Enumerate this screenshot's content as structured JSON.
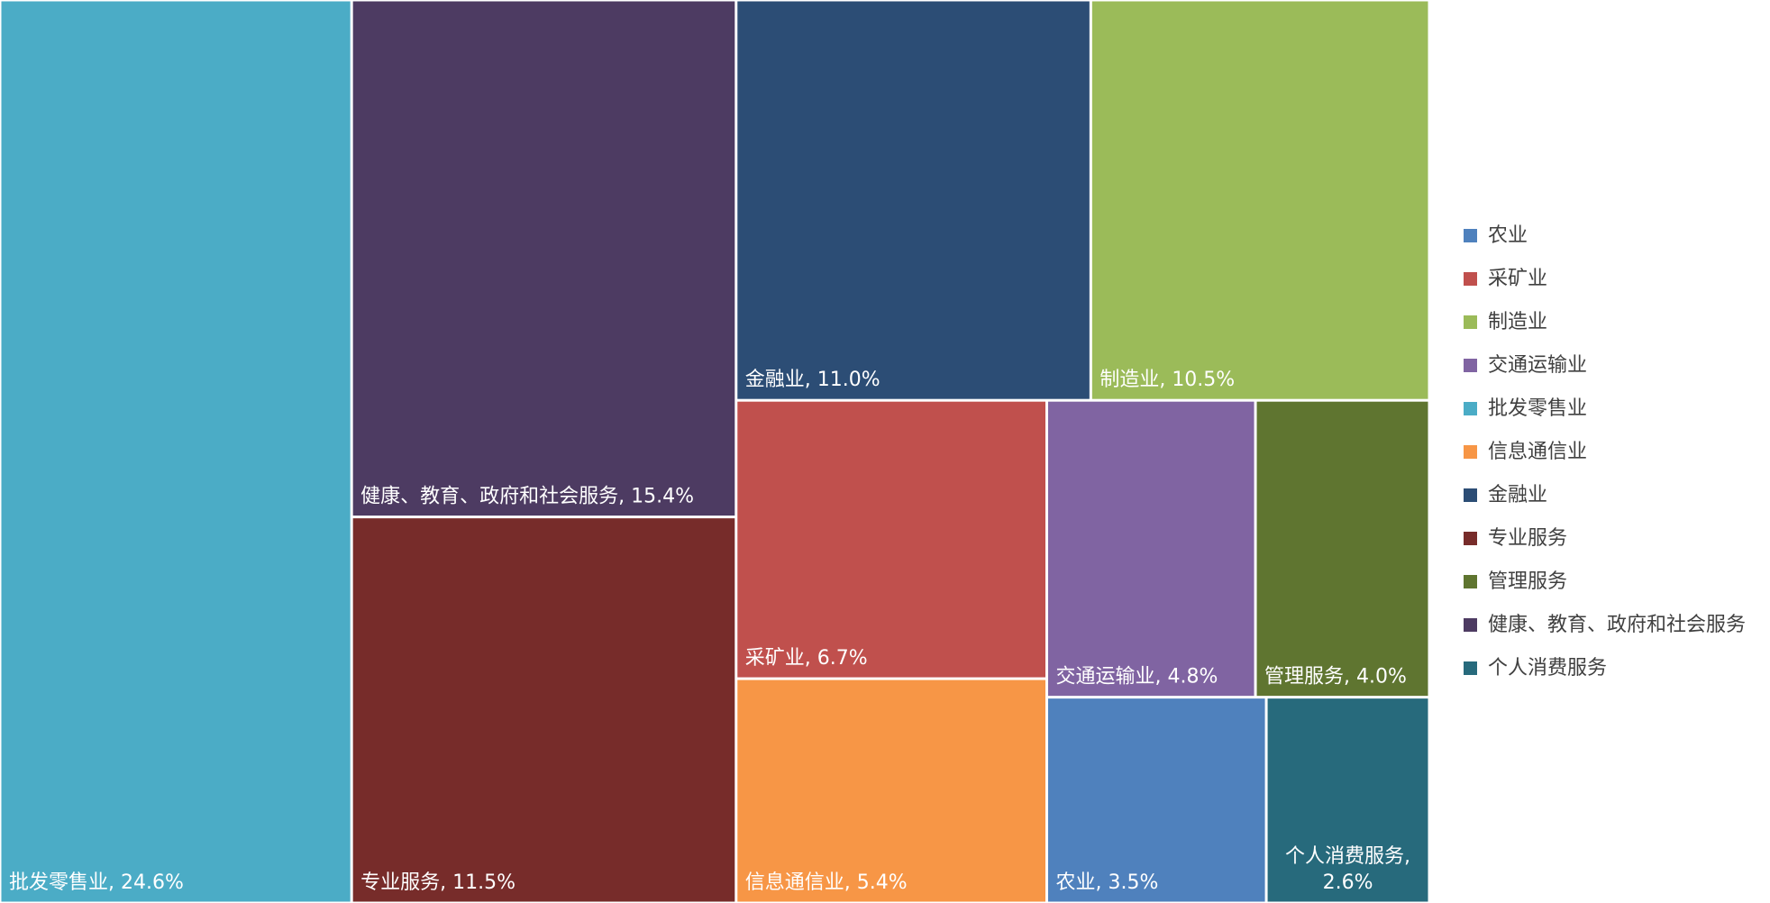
{
  "chart_data": {
    "type": "treemap",
    "categories": [
      "农业",
      "采矿业",
      "制造业",
      "交通运输业",
      "批发零售业",
      "信息通信业",
      "金融业",
      "专业服务",
      "管理服务",
      "健康、教育、政府和社会服务",
      "个人消费服务"
    ],
    "values": [
      3.5,
      6.7,
      10.5,
      4.8,
      24.6,
      5.4,
      11.0,
      11.5,
      4.0,
      15.4,
      2.6
    ],
    "value_labels": [
      "农业, 3.5%",
      "采矿业, 6.7%",
      "制造业, 10.5%",
      "交通运输业, 4.8%",
      "批发零售业, 24.6%",
      "信息通信业, 5.4%",
      "金融业, 11.0%",
      "专业服务, 11.5%",
      "管理服务, 4.0%",
      "健康、教育、政府和社会服务, 15.4%",
      "个人消费服务, 2.6%"
    ],
    "colors": [
      "#4f81bd",
      "#c0504d",
      "#9bbb59",
      "#8064a2",
      "#4bacc6",
      "#f79646",
      "#2c4d75",
      "#772c2a",
      "#5f7530",
      "#4d3b62",
      "#276a7c"
    ],
    "legend": "right"
  }
}
